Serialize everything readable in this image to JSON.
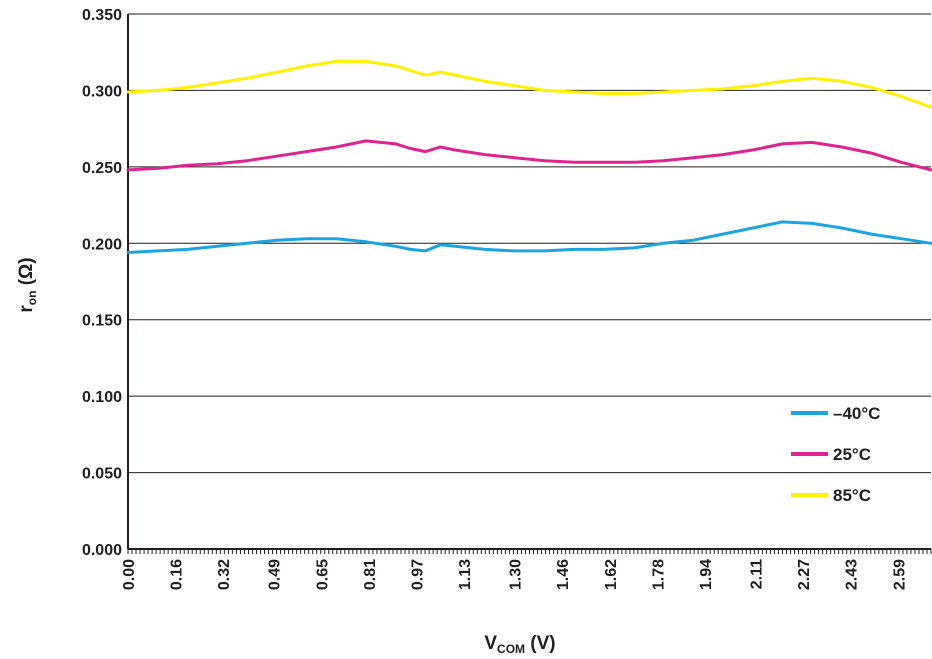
{
  "chart_data": {
    "type": "line",
    "xlabel": {
      "main": "V",
      "sub": "COM",
      "unit": " (V)"
    },
    "ylabel": {
      "main": "r",
      "sub": "on",
      "unit": " (Ω)"
    },
    "xlim": [
      0,
      2.7
    ],
    "ylim": [
      0,
      0.35
    ],
    "x_ticks": [
      "0.00",
      "0.16",
      "0.32",
      "0.49",
      "0.65",
      "0.81",
      "0.97",
      "1.13",
      "1.30",
      "1.46",
      "1.62",
      "1.78",
      "1.94",
      "2.11",
      "2.27",
      "2.43",
      "2.59"
    ],
    "y_ticks": [
      "0.000",
      "0.050",
      "0.100",
      "0.150",
      "0.200",
      "0.250",
      "0.300",
      "0.350"
    ],
    "grid": "horizontal",
    "legend_position": "bottom-right",
    "x": [
      0,
      0.1,
      0.2,
      0.3,
      0.4,
      0.5,
      0.6,
      0.7,
      0.8,
      0.9,
      0.95,
      1.0,
      1.05,
      1.1,
      1.2,
      1.3,
      1.4,
      1.5,
      1.6,
      1.7,
      1.8,
      1.9,
      2.0,
      2.1,
      2.2,
      2.3,
      2.4,
      2.5,
      2.6,
      2.7
    ],
    "series": [
      {
        "name": "–40°C",
        "color": "#1ba5e0",
        "values": [
          0.194,
          0.195,
          0.196,
          0.198,
          0.2,
          0.202,
          0.203,
          0.203,
          0.201,
          0.198,
          0.196,
          0.195,
          0.199,
          0.198,
          0.196,
          0.195,
          0.195,
          0.196,
          0.196,
          0.197,
          0.2,
          0.202,
          0.206,
          0.21,
          0.214,
          0.213,
          0.21,
          0.206,
          0.203,
          0.2
        ]
      },
      {
        "name": "25°C",
        "color": "#e0248e",
        "values": [
          0.248,
          0.249,
          0.251,
          0.252,
          0.254,
          0.257,
          0.26,
          0.263,
          0.267,
          0.265,
          0.262,
          0.26,
          0.263,
          0.261,
          0.258,
          0.256,
          0.254,
          0.253,
          0.253,
          0.253,
          0.254,
          0.256,
          0.258,
          0.261,
          0.265,
          0.266,
          0.263,
          0.259,
          0.253,
          0.248
        ]
      },
      {
        "name": "85°C",
        "color": "#fff200",
        "values": [
          0.299,
          0.3,
          0.302,
          0.305,
          0.308,
          0.312,
          0.316,
          0.319,
          0.319,
          0.316,
          0.313,
          0.31,
          0.312,
          0.31,
          0.306,
          0.303,
          0.3,
          0.299,
          0.298,
          0.298,
          0.299,
          0.3,
          0.301,
          0.303,
          0.306,
          0.308,
          0.306,
          0.302,
          0.296,
          0.289
        ]
      }
    ]
  }
}
